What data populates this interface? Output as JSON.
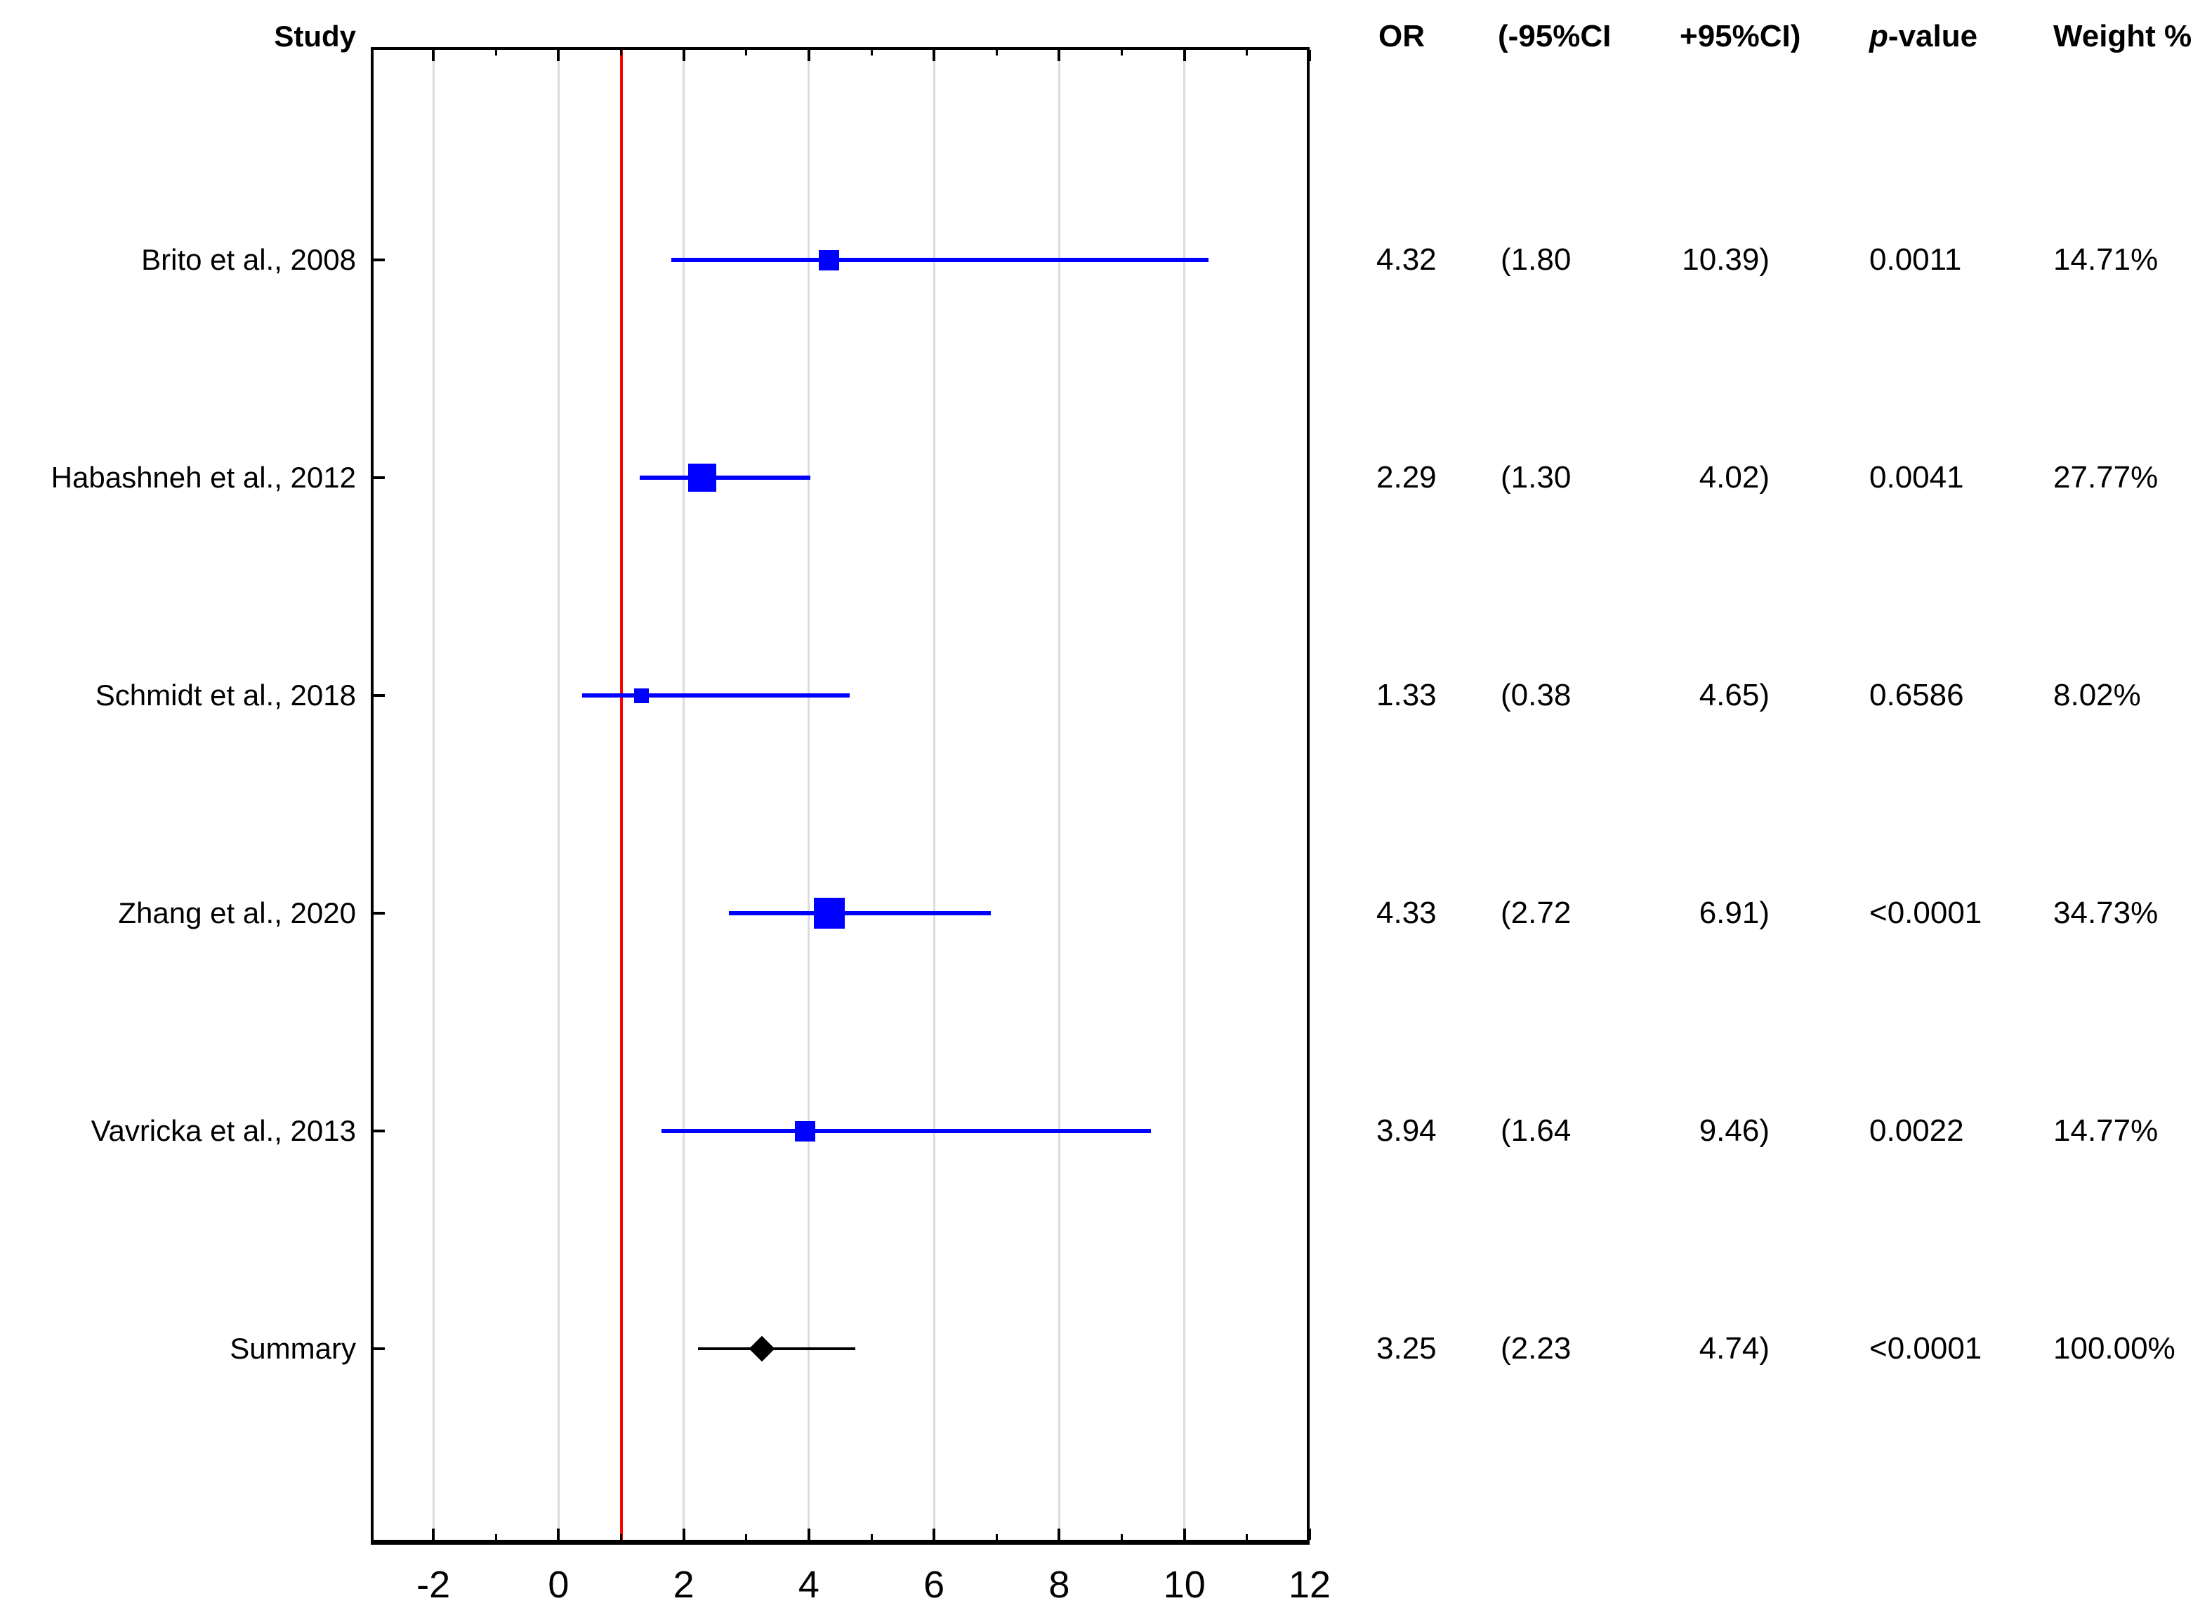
{
  "header": {
    "study_col": "Study",
    "or": "OR",
    "ci_low": "(-95%CI",
    "ci_high": "+95%CI)",
    "p_italic": "p",
    "p_rest": "-value",
    "weight": "Weight %"
  },
  "colors": {
    "study_marker": "#0000FE",
    "study_ci_line": "#0000FE",
    "summary_marker": "#000000",
    "summary_ci_line": "#000000",
    "reference_line": "#FF0000",
    "gridline": "#DCDCDC",
    "axis": "#000000",
    "text": "#000000",
    "background": "#FFFFFF"
  },
  "chart_data": {
    "type": "scatter",
    "variant": "forest_plot",
    "title": "",
    "xlabel": "",
    "ylabel": "Study",
    "x_axis": {
      "range": [
        -3,
        12
      ],
      "major_ticks": [
        -2,
        0,
        2,
        4,
        6,
        8,
        10,
        12
      ],
      "minor_ticks": [
        -1,
        1,
        3,
        5,
        7,
        9,
        11
      ],
      "reference_line_x": 1,
      "grid": true
    },
    "columns": [
      "OR",
      "(-95%CI",
      "+95%CI)",
      "p-value",
      "Weight %"
    ],
    "rows": [
      {
        "study": "Brito et al., 2008",
        "or_value": 4.32,
        "ci_low_value": 1.8,
        "ci_high_value": 10.39,
        "weight_value": 14.71,
        "or": "4.32",
        "ci_low": "(1.80",
        "ci_high": "10.39)",
        "p_value": "0.0011",
        "weight": "14.71%",
        "marker": "square"
      },
      {
        "study": "Habashneh et al., 2012",
        "or_value": 2.29,
        "ci_low_value": 1.3,
        "ci_high_value": 4.02,
        "weight_value": 27.77,
        "or": "2.29",
        "ci_low": "(1.30",
        "ci_high": "4.02)",
        "p_value": "0.0041",
        "weight": "27.77%",
        "marker": "square"
      },
      {
        "study": "Schmidt et al., 2018",
        "or_value": 1.33,
        "ci_low_value": 0.38,
        "ci_high_value": 4.65,
        "weight_value": 8.02,
        "or": "1.33",
        "ci_low": "(0.38",
        "ci_high": "4.65)",
        "p_value": "0.6586",
        "weight": "8.02%",
        "marker": "square"
      },
      {
        "study": "Zhang et al., 2020",
        "or_value": 4.33,
        "ci_low_value": 2.72,
        "ci_high_value": 6.91,
        "weight_value": 34.73,
        "or": "4.33",
        "ci_low": "(2.72",
        "ci_high": "6.91)",
        "p_value": "<0.0001",
        "weight": "34.73%",
        "marker": "square"
      },
      {
        "study": "Vavricka et al., 2013",
        "or_value": 3.94,
        "ci_low_value": 1.64,
        "ci_high_value": 9.46,
        "weight_value": 14.77,
        "or": "3.94",
        "ci_low": "(1.64",
        "ci_high": "9.46)",
        "p_value": "0.0022",
        "weight": "14.77%",
        "marker": "square"
      },
      {
        "study": "Summary",
        "or_value": 3.25,
        "ci_low_value": 2.23,
        "ci_high_value": 4.74,
        "weight_value": 100.0,
        "or": "3.25",
        "ci_low": "(2.23",
        "ci_high": "4.74)",
        "p_value": "<0.0001",
        "weight": "100.00%",
        "marker": "diamond"
      }
    ]
  }
}
